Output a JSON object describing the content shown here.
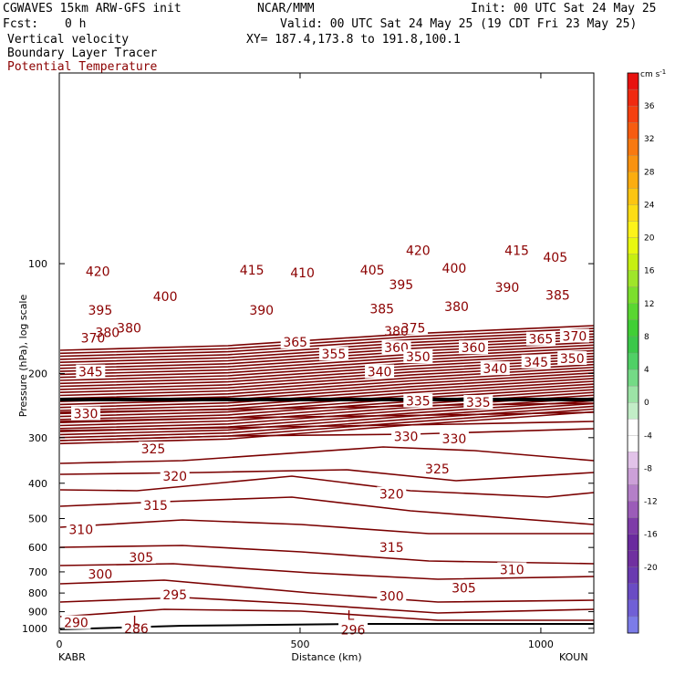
{
  "header": {
    "model": "CGWAVES 15km ARW-GFS init",
    "center": "NCAR/MMM",
    "init": "Init: 00 UTC Sat 24 May 25",
    "fcst_label": "Fcst:",
    "fcst_value": "0 h",
    "valid": "Valid: 00 UTC Sat 24 May 25 (19 CDT Fri 23 May 25)",
    "field1": "Vertical velocity",
    "xy": "XY= 187.4,173.8 to 191.8,100.1",
    "field2": "Boundary Layer Tracer",
    "field3": "Potential Temperature",
    "field3_color": "#8b0000"
  },
  "chart_data": {
    "type": "contour-cross-section",
    "ylabel": "Pressure (hPa), log scale",
    "xlabel": "Distance (km)",
    "x_ticks": [
      "0",
      "500",
      "1000"
    ],
    "x_range": [
      0,
      1110
    ],
    "y_ticks": [
      "100",
      "200",
      "300",
      "400",
      "500",
      "600",
      "700",
      "800",
      "900",
      "1000"
    ],
    "y_range_hpa": [
      1030,
      30
    ],
    "y_scale": "log",
    "left_station": "KABR",
    "right_station": "KOUN",
    "contour_color": "#7a0000",
    "theta_labels": [
      {
        "x": 35,
        "p": 965,
        "t": "290"
      },
      {
        "x": 160,
        "p": 1000,
        "t": "286"
      },
      {
        "x": 240,
        "p": 808,
        "t": "295"
      },
      {
        "x": 85,
        "p": 710,
        "t": "300"
      },
      {
        "x": 170,
        "p": 638,
        "t": "305"
      },
      {
        "x": 45,
        "p": 535,
        "t": "310"
      },
      {
        "x": 200,
        "p": 460,
        "t": "315"
      },
      {
        "x": 240,
        "p": 382,
        "t": "320"
      },
      {
        "x": 195,
        "p": 322,
        "t": "325"
      },
      {
        "x": 55,
        "p": 258,
        "t": "330"
      },
      {
        "x": 65,
        "p": 198,
        "t": "345"
      },
      {
        "x": 70,
        "p": 160,
        "t": "370"
      },
      {
        "x": 145,
        "p": 150,
        "t": "380"
      },
      {
        "x": 85,
        "p": 134,
        "t": "395"
      },
      {
        "x": 220,
        "p": 123,
        "t": "400"
      },
      {
        "x": 80,
        "p": 105,
        "t": "420"
      },
      {
        "x": 400,
        "p": 104,
        "t": "415"
      },
      {
        "x": 505,
        "p": 106,
        "t": "410"
      },
      {
        "x": 420,
        "p": 134,
        "t": "390"
      },
      {
        "x": 490,
        "p": 164,
        "t": "365"
      },
      {
        "x": 570,
        "p": 177,
        "t": "355"
      },
      {
        "x": 650,
        "p": 104,
        "t": "405"
      },
      {
        "x": 710,
        "p": 114,
        "t": "395"
      },
      {
        "x": 670,
        "p": 133,
        "t": "385"
      },
      {
        "x": 700,
        "p": 170,
        "t": "360"
      },
      {
        "x": 735,
        "p": 150,
        "t": "375"
      },
      {
        "x": 745,
        "p": 180,
        "t": "350"
      },
      {
        "x": 665,
        "p": 198,
        "t": "340"
      },
      {
        "x": 745,
        "p": 92,
        "t": "420"
      },
      {
        "x": 820,
        "p": 103,
        "t": "400"
      },
      {
        "x": 825,
        "p": 131,
        "t": "380"
      },
      {
        "x": 860,
        "p": 170,
        "t": "360"
      },
      {
        "x": 905,
        "p": 194,
        "t": "340"
      },
      {
        "x": 950,
        "p": 92,
        "t": "415"
      },
      {
        "x": 1030,
        "p": 96,
        "t": "405"
      },
      {
        "x": 930,
        "p": 116,
        "t": "390"
      },
      {
        "x": 1035,
        "p": 122,
        "t": "385"
      },
      {
        "x": 1000,
        "p": 161,
        "t": "365"
      },
      {
        "x": 1070,
        "p": 158,
        "t": "370"
      },
      {
        "x": 990,
        "p": 186,
        "t": "345"
      },
      {
        "x": 1065,
        "p": 182,
        "t": "350"
      },
      {
        "x": 745,
        "p": 238,
        "t": "335"
      },
      {
        "x": 870,
        "p": 240,
        "t": "335"
      },
      {
        "x": 720,
        "p": 298,
        "t": "330"
      },
      {
        "x": 820,
        "p": 302,
        "t": "330"
      },
      {
        "x": 785,
        "p": 365,
        "t": "325"
      },
      {
        "x": 690,
        "p": 428,
        "t": "320"
      },
      {
        "x": 690,
        "p": 600,
        "t": "315"
      },
      {
        "x": 940,
        "p": 690,
        "t": "310"
      },
      {
        "x": 840,
        "p": 775,
        "t": "305"
      },
      {
        "x": 690,
        "p": 815,
        "t": "300"
      },
      {
        "x": 610,
        "p": 1010,
        "t": "296"
      }
    ],
    "low_labels": [
      {
        "x": 160,
        "p": 952,
        "t": "L"
      },
      {
        "x": 605,
        "p": 920,
        "t": "L"
      }
    ],
    "small_labels": [
      {
        "x": 100,
        "p": 156,
        "t": "380"
      },
      {
        "x": 700,
        "p": 155,
        "t": "380"
      }
    ],
    "colorbar": {
      "unit": "cm s",
      "unit_exp": "-1",
      "labels": [
        "36",
        "32",
        "28",
        "24",
        "20",
        "16",
        "12",
        "8",
        "4",
        "0",
        "-4",
        "-8",
        "-12",
        "-16",
        "-20"
      ],
      "colors": [
        "#e8120f",
        "#f02a10",
        "#f54010",
        "#f75c10",
        "#f87910",
        "#f99210",
        "#fbad10",
        "#fcc512",
        "#fcdd15",
        "#fdf31a",
        "#e8f810",
        "#c6ef12",
        "#9fe52a",
        "#7cdf2d",
        "#5ad732",
        "#40cf36",
        "#3bc84a",
        "#50d066",
        "#74da86",
        "#9ce3a6",
        "#c2edc7",
        "#ffffff",
        "#ffffff",
        "#e2c3e9",
        "#cca0d8",
        "#b47fc8",
        "#9b5cb8",
        "#7e3ca8",
        "#6a2a9e",
        "#7030a0",
        "#6a3ab0",
        "#6a4cc4",
        "#7060d6",
        "#7c7ce8"
      ]
    }
  }
}
